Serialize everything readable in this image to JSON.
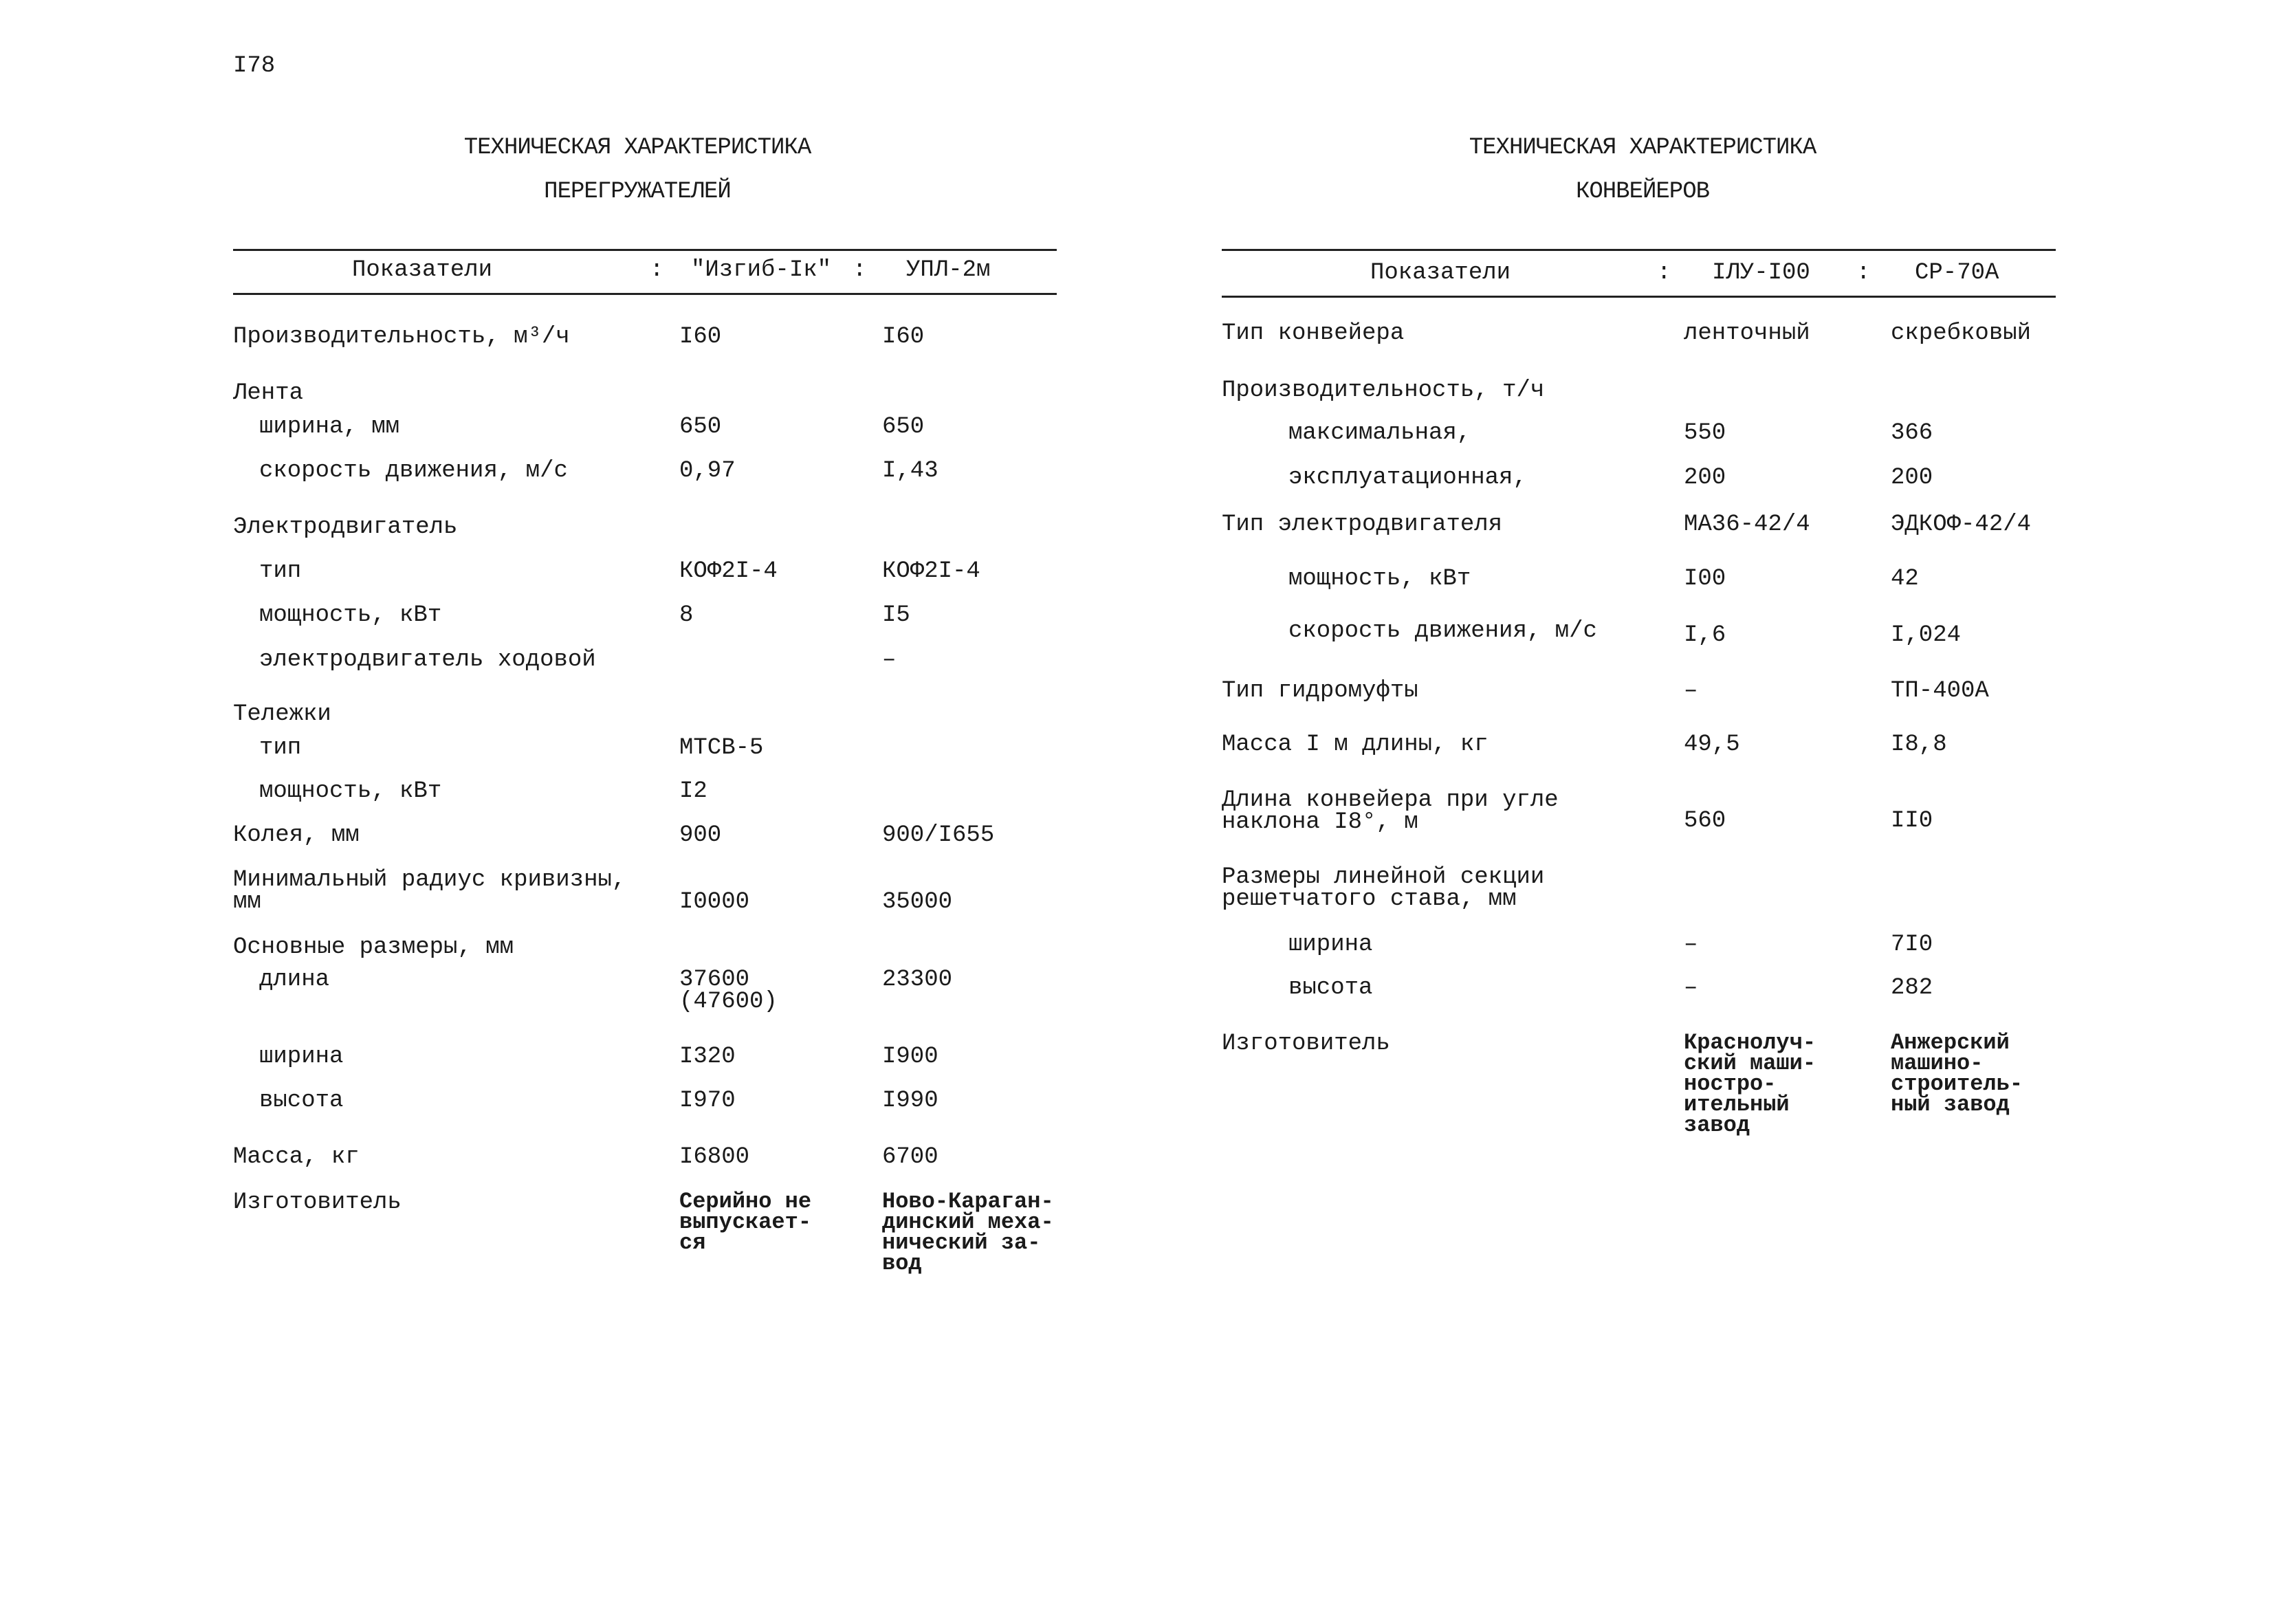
{
  "page_number": "I78",
  "left": {
    "title_line1": "ТЕХНИЧЕСКАЯ ХАРАКТЕРИСТИКА",
    "title_line2": "ПЕРЕГРУЖАТЕЛЕЙ",
    "headers": [
      "Показатели",
      ":",
      "\"Изгиб-Iк\"",
      ":",
      "УПЛ-2м"
    ],
    "rows": [
      {
        "label": "Производительность, м³/ч",
        "v1": "I60",
        "v2": "I60"
      },
      {
        "label": "Лента",
        "v1": "",
        "v2": ""
      },
      {
        "label": "ширина, мм",
        "v1": "650",
        "v2": "650"
      },
      {
        "label": "скорость движения, м/с",
        "v1": "0,97",
        "v2": "I,43"
      },
      {
        "label": "Электродвигатель",
        "v1": "",
        "v2": ""
      },
      {
        "label": "тип",
        "v1": "КОФ2I-4",
        "v2": "КОФ2I-4"
      },
      {
        "label": "мощность, кВт",
        "v1": "8",
        "v2": "I5"
      },
      {
        "label": "электродвигатель ходовой",
        "v1": "",
        "v2": "–"
      },
      {
        "label": "Тележки",
        "v1": "",
        "v2": ""
      },
      {
        "label": "тип",
        "v1": "МТСВ-5",
        "v2": ""
      },
      {
        "label": "мощность, кВт",
        "v1": "I2",
        "v2": ""
      },
      {
        "label": "Колея, мм",
        "v1": "900",
        "v2": "900/I655"
      },
      {
        "label": "Минимальный радиус кривизны,\nмм",
        "v1": "I0000",
        "v2": "35000"
      },
      {
        "label": "Основные размеры, мм",
        "v1": "",
        "v2": ""
      },
      {
        "label": "длина",
        "v1": "37600\n(47600)",
        "v2": "23300"
      },
      {
        "label": "ширина",
        "v1": "I320",
        "v2": "I900"
      },
      {
        "label": "высота",
        "v1": "I970",
        "v2": "I990"
      },
      {
        "label": "Масса, кг",
        "v1": "I6800",
        "v2": "6700"
      },
      {
        "label": "Изготовитель",
        "v1": "Серийно не\nвыпускает-\nся",
        "v2": "Ново-Караган-\nдинский меха-\nнический за-\nвод"
      }
    ]
  },
  "right": {
    "title_line1": "ТЕХНИЧЕСКАЯ ХАРАКТЕРИСТИКА",
    "title_line2": "КОНВЕЙЕРОВ",
    "headers": [
      "Показатели",
      ":",
      "IЛУ-I00",
      ":",
      "СР-70А"
    ],
    "rows": [
      {
        "label": "Тип конвейера",
        "v1": "ленточный",
        "v2": "скребковый"
      },
      {
        "label": "Производительность, т/ч",
        "v1": "",
        "v2": ""
      },
      {
        "label": "максимальная,",
        "v1": "550",
        "v2": "366"
      },
      {
        "label": "эксплуатационная,",
        "v1": "200",
        "v2": "200"
      },
      {
        "label": "Тип электродвигателя",
        "v1": "МА36-42/4",
        "v2": "ЭДКОФ-42/4"
      },
      {
        "label": "мощность, кВт",
        "v1": "I00",
        "v2": "42"
      },
      {
        "label": "скорость движения, м/с",
        "v1": "I,6",
        "v2": "I,024"
      },
      {
        "label": "Тип гидромуфты",
        "v1": "–",
        "v2": "ТП-400А"
      },
      {
        "label": "Масса I м длины, кг",
        "v1": "49,5",
        "v2": "I8,8"
      },
      {
        "label": "Длина конвейера при угле\nнаклона I8°, м",
        "v1": "560",
        "v2": "II0"
      },
      {
        "label": "Размеры линейной секции\nрешетчатого става, мм",
        "v1": "",
        "v2": ""
      },
      {
        "label": "ширина",
        "v1": "–",
        "v2": "7I0"
      },
      {
        "label": "высота",
        "v1": "–",
        "v2": "282"
      },
      {
        "label": "Изготовитель",
        "v1": "Краснолуч-\nский маши-\nностро-\nительный\nзавод",
        "v2": "Анжерский\nмашино-\nстроитель-\nный завод"
      }
    ]
  }
}
